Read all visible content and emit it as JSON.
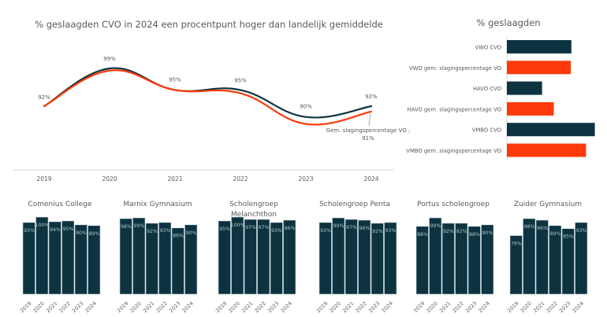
{
  "colors": {
    "cvo": "#0d3340",
    "national": "#fe3a0a",
    "axis": "#d9d9d9",
    "text": "#595959",
    "bar_label": "#a9c3cc"
  },
  "chart_data": [
    {
      "type": "line",
      "title": "% geslaagden CVO in 2024 een procentpunt hoger dan landelijk gemiddelde",
      "x": [
        "2019",
        "2020",
        "2021",
        "2022",
        "2023",
        "2024"
      ],
      "series": [
        {
          "name": "CVO",
          "values": [
            92,
            99,
            95,
            95,
            90,
            92
          ],
          "labels": [
            "92%",
            "99%",
            "95%",
            "95%",
            "90%",
            "92%"
          ]
        },
        {
          "name": "Gem. slagingspercentage VO",
          "values": [
            92,
            98.6,
            95,
            94.4,
            88.7,
            91
          ]
        }
      ],
      "annotation": {
        "text_line1": "Gem. slagingspercentage VO ;",
        "text_line2": "91%"
      },
      "ylim": [
        84,
        101
      ],
      "grid": false,
      "xlabel": "",
      "ylabel": ""
    },
    {
      "type": "bar",
      "orientation": "horizontal",
      "title": "% geslaagden",
      "categories": [
        "VWO CVO",
        "VWO gem. slagingspercentage VO",
        "HAVO CVO",
        "HAVO gem. slagingspercentage VO",
        "VMBO  CVO",
        "VMBO gem. slagingspercentage VO"
      ],
      "values": [
        91,
        90.9,
        86,
        88,
        95,
        93.5
      ],
      "series_colors": [
        "cvo",
        "national",
        "cvo",
        "national",
        "cvo",
        "national"
      ],
      "xlim": [
        80,
        96
      ],
      "note": "values estimated; no axis shown"
    },
    {
      "type": "bar",
      "title": "Comenius College",
      "categories": [
        "2019",
        "2020",
        "2021",
        "2022",
        "2023",
        "2024"
      ],
      "values": [
        93,
        100,
        94,
        95,
        90,
        89
      ],
      "labels": [
        "93%",
        "100%",
        "94%",
        "95%",
        "90%",
        "89%"
      ],
      "ylim": [
        0,
        100
      ]
    },
    {
      "type": "bar",
      "title": "Marnix Gymnasium",
      "categories": [
        "2019",
        "2020",
        "2021",
        "2022",
        "2023",
        "2024"
      ],
      "values": [
        98,
        99,
        92,
        93,
        86,
        90
      ],
      "labels": [
        "98%",
        "99%",
        "92%",
        "93%",
        "86%",
        "90%"
      ],
      "ylim": [
        0,
        100
      ]
    },
    {
      "type": "bar",
      "title_line1": "Scholengroep",
      "title_line2": "Melanchthon",
      "title": "Scholengroep Melanchthon",
      "categories": [
        "2019",
        "2020",
        "2021",
        "2022",
        "2023",
        "2024"
      ],
      "values": [
        95,
        100,
        97,
        97,
        93,
        96
      ],
      "labels": [
        "95%",
        "100%",
        "97%",
        "97%",
        "93%",
        "96%"
      ],
      "ylim": [
        0,
        100
      ]
    },
    {
      "type": "bar",
      "title": "Scholengroep Penta",
      "categories": [
        "2019",
        "2020",
        "2021",
        "2022",
        "2023",
        "2024"
      ],
      "values": [
        93,
        99,
        97,
        96,
        92,
        93
      ],
      "labels": [
        "93%",
        "99%",
        "97%",
        "96%",
        "92%",
        "93%"
      ],
      "ylim": [
        0,
        100
      ]
    },
    {
      "type": "bar",
      "title": "Portus scholengroep",
      "categories": [
        "2019",
        "2020",
        "2021",
        "2022",
        "2023",
        "2024"
      ],
      "values": [
        88,
        99,
        92,
        92,
        88,
        90
      ],
      "labels": [
        "88%",
        "99%",
        "92%",
        "92%",
        "88%",
        "90%"
      ],
      "ylim": [
        0,
        100
      ]
    },
    {
      "type": "bar",
      "title": "Zuider Gymnasium",
      "categories": [
        "2019",
        "2020",
        "2021",
        "2022",
        "2023",
        "2024"
      ],
      "values": [
        76,
        98,
        96,
        89,
        85,
        93
      ],
      "labels": [
        "76%",
        "98%",
        "96%",
        "89%",
        "85%",
        "93%"
      ],
      "ylim": [
        0,
        100
      ]
    }
  ]
}
